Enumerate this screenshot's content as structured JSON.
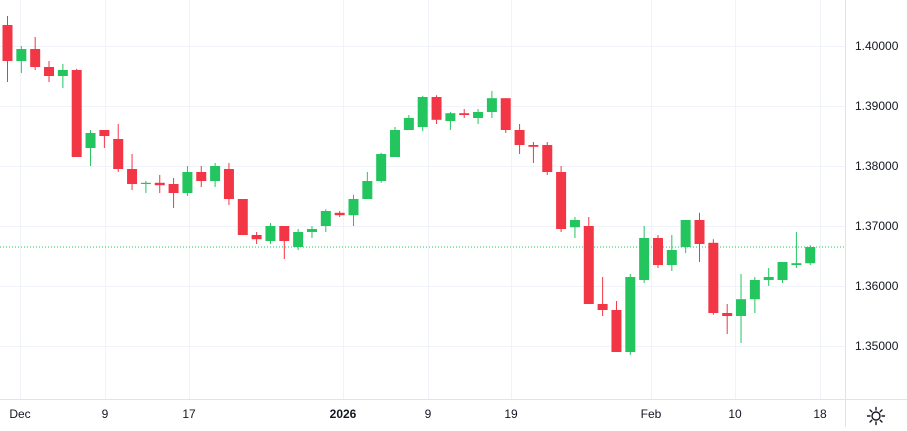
{
  "chart_data": {
    "type": "candlestick",
    "colors": {
      "up": "#22c55e",
      "down": "#f23645",
      "grid": "#f0f3fa",
      "axis_text": "#131722",
      "price_line": "#22c55e"
    },
    "y_ticks": [
      "1.40000",
      "1.39000",
      "1.38000",
      "1.37000",
      "1.36000",
      "1.35000"
    ],
    "x_ticks": [
      {
        "label": "Dec",
        "bold": false
      },
      {
        "label": "9",
        "bold": false
      },
      {
        "label": "17",
        "bold": false
      },
      {
        "label": "2026",
        "bold": true
      },
      {
        "label": "9",
        "bold": false
      },
      {
        "label": "19",
        "bold": false
      },
      {
        "label": "Feb",
        "bold": false
      },
      {
        "label": "10",
        "bold": false
      },
      {
        "label": "18",
        "bold": false
      }
    ],
    "ylim": [
      1.3425,
      1.4075
    ],
    "last_price": 1.3665,
    "candles": [
      [
        1.4035,
        1.405,
        1.394,
        1.3975
      ],
      [
        1.3975,
        1.4,
        1.3955,
        1.3995
      ],
      [
        1.3995,
        1.4015,
        1.396,
        1.3965
      ],
      [
        1.3965,
        1.3975,
        1.394,
        1.395
      ],
      [
        1.395,
        1.397,
        1.393,
        1.396
      ],
      [
        1.396,
        1.3962,
        1.3815,
        1.3815
      ],
      [
        1.383,
        1.386,
        1.38,
        1.3855
      ],
      [
        1.386,
        1.386,
        1.383,
        1.385
      ],
      [
        1.3845,
        1.387,
        1.379,
        1.3795
      ],
      [
        1.3795,
        1.382,
        1.376,
        1.377
      ],
      [
        1.377,
        1.3775,
        1.3755,
        1.3772
      ],
      [
        1.3772,
        1.3785,
        1.3755,
        1.3768
      ],
      [
        1.377,
        1.378,
        1.373,
        1.3755
      ],
      [
        1.3755,
        1.38,
        1.375,
        1.379
      ],
      [
        1.379,
        1.38,
        1.3765,
        1.3775
      ],
      [
        1.3775,
        1.3805,
        1.3765,
        1.38
      ],
      [
        1.3795,
        1.3805,
        1.3735,
        1.3745
      ],
      [
        1.3745,
        1.3745,
        1.3685,
        1.3685
      ],
      [
        1.3685,
        1.369,
        1.367,
        1.3678
      ],
      [
        1.3675,
        1.3705,
        1.367,
        1.37
      ],
      [
        1.37,
        1.37,
        1.3645,
        1.3675
      ],
      [
        1.3665,
        1.3695,
        1.366,
        1.369
      ],
      [
        1.369,
        1.37,
        1.368,
        1.3695
      ],
      [
        1.37,
        1.3728,
        1.369,
        1.3725
      ],
      [
        1.3722,
        1.3725,
        1.3715,
        1.3718
      ],
      [
        1.3718,
        1.3752,
        1.37,
        1.3745
      ],
      [
        1.3745,
        1.379,
        1.3745,
        1.3775
      ],
      [
        1.3775,
        1.3822,
        1.3772,
        1.382
      ],
      [
        1.3815,
        1.3865,
        1.3815,
        1.386
      ],
      [
        1.386,
        1.3885,
        1.386,
        1.388
      ],
      [
        1.3865,
        1.3917,
        1.3858,
        1.3915
      ],
      [
        1.3915,
        1.3918,
        1.387,
        1.3877
      ],
      [
        1.3875,
        1.389,
        1.386,
        1.3888
      ],
      [
        1.3888,
        1.3895,
        1.388,
        1.3885
      ],
      [
        1.388,
        1.3895,
        1.387,
        1.389
      ],
      [
        1.389,
        1.3925,
        1.388,
        1.3913
      ],
      [
        1.3913,
        1.3913,
        1.3855,
        1.386
      ],
      [
        1.386,
        1.387,
        1.382,
        1.3835
      ],
      [
        1.3835,
        1.384,
        1.3805,
        1.3832
      ],
      [
        1.3835,
        1.384,
        1.3785,
        1.379
      ],
      [
        1.379,
        1.38,
        1.369,
        1.3695
      ],
      [
        1.3698,
        1.3715,
        1.368,
        1.371
      ],
      [
        1.37,
        1.3715,
        1.357,
        1.357
      ],
      [
        1.357,
        1.3615,
        1.355,
        1.356
      ],
      [
        1.356,
        1.3575,
        1.349,
        1.349
      ],
      [
        1.349,
        1.362,
        1.3485,
        1.3615
      ],
      [
        1.361,
        1.37,
        1.3605,
        1.368
      ],
      [
        1.368,
        1.3685,
        1.363,
        1.3635
      ],
      [
        1.3635,
        1.3685,
        1.3625,
        1.366
      ],
      [
        1.3665,
        1.371,
        1.3655,
        1.371
      ],
      [
        1.371,
        1.3722,
        1.364,
        1.367
      ],
      [
        1.3672,
        1.3678,
        1.3552,
        1.3555
      ],
      [
        1.3555,
        1.357,
        1.352,
        1.355
      ],
      [
        1.355,
        1.362,
        1.3505,
        1.3578
      ],
      [
        1.3578,
        1.3615,
        1.3555,
        1.361
      ],
      [
        1.361,
        1.363,
        1.36,
        1.3615
      ],
      [
        1.361,
        1.364,
        1.3605,
        1.364
      ],
      [
        1.3635,
        1.369,
        1.363,
        1.3638
      ],
      [
        1.3638,
        1.3668,
        1.3635,
        1.3665
      ]
    ]
  },
  "ui": {
    "settings_icon": "gear-icon"
  }
}
